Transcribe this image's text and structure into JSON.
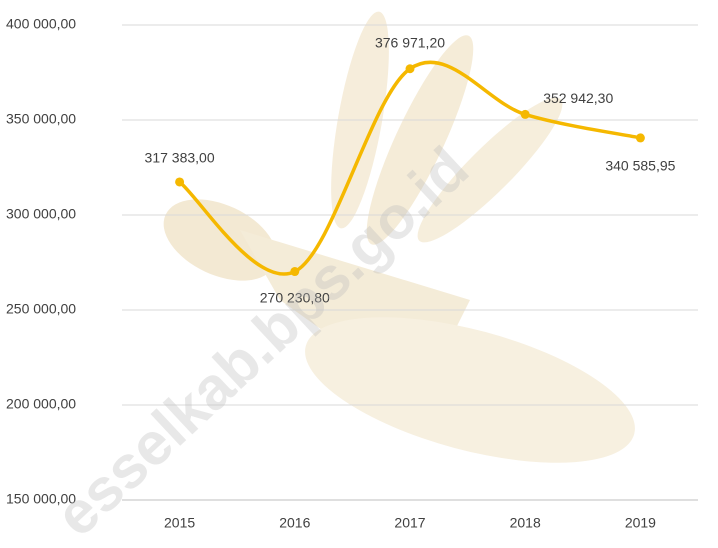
{
  "chart_data": {
    "type": "line",
    "categories": [
      "2015",
      "2016",
      "2017",
      "2018",
      "2019"
    ],
    "series": [
      {
        "color": "#F5B800",
        "values": [
          317383.0,
          270230.8,
          376971.2,
          352942.3,
          340585.95
        ],
        "value_labels": [
          "317 383,00",
          "270 230,80",
          "376 971,20",
          "352 942,30",
          "340 585,95"
        ]
      }
    ],
    "ylim": [
      150000,
      400000
    ],
    "yticks": [
      {
        "value": 150000,
        "label": "150 000,00"
      },
      {
        "value": 200000,
        "label": "200 000,00"
      },
      {
        "value": 250000,
        "label": "250 000,00"
      },
      {
        "value": 300000,
        "label": "300 000,00"
      },
      {
        "value": 350000,
        "label": "350 000,00"
      },
      {
        "value": 400000,
        "label": "400 000,00"
      }
    ],
    "grid": true,
    "smooth": true,
    "watermark": "esselkab.bps.go.id"
  }
}
